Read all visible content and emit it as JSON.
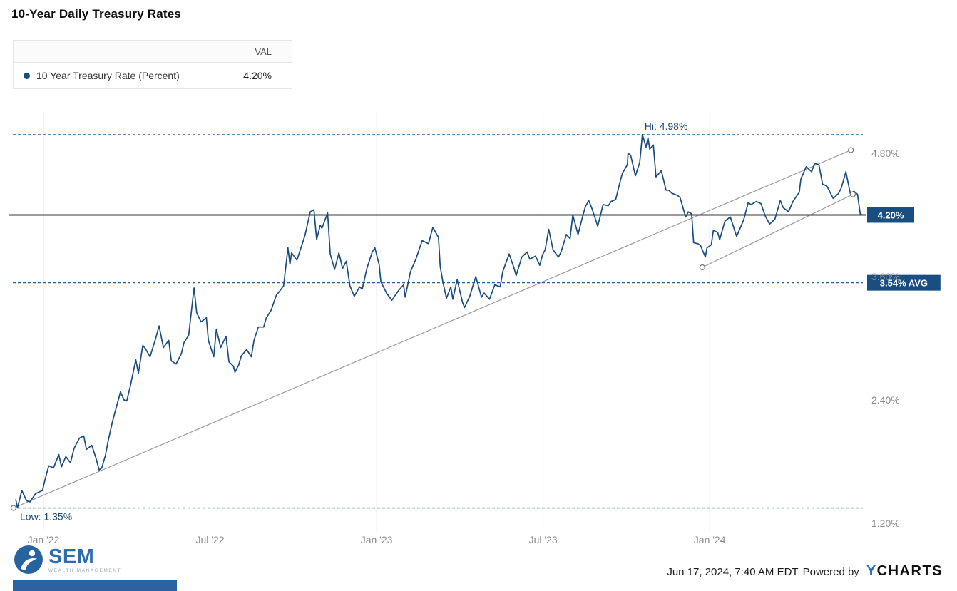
{
  "page": {
    "title": "10-Year Daily Treasury Rates"
  },
  "legend": {
    "col_header": "VAL",
    "series_label": "10 Year Treasury Rate (Percent)",
    "series_value": "4.20%"
  },
  "colors": {
    "line": "#1a4c7e",
    "dashed": "#27619c",
    "annotation_text": "#17497b",
    "badge_bg": "#1b4e80",
    "badge_text": "#ffffff",
    "grid": "#eaeaea",
    "axis_text": "#8c8c8c",
    "trend": "#9a9a9a",
    "last_line": "#3a3a3a"
  },
  "chart_data": {
    "type": "line",
    "title": "10-Year Daily Treasury Rates",
    "xlabel": "",
    "ylabel": "10 Year Treasury Rate (Percent)",
    "grid": "vertical-only",
    "legend_position": "top-left",
    "xlim": [
      2021.908,
      2024.46
    ],
    "ylim": [
      1.125,
      5.25
    ],
    "x_ticks": [
      {
        "t": 2022.0,
        "label": "Jan '22"
      },
      {
        "t": 2022.5,
        "label": "Jul '22"
      },
      {
        "t": 2023.0,
        "label": "Jan '23"
      },
      {
        "t": 2023.5,
        "label": "Jul '23"
      },
      {
        "t": 2024.0,
        "label": "Jan '24"
      }
    ],
    "y_ticks": [
      {
        "v": 4.8,
        "label": "4.80%"
      },
      {
        "v": 3.6,
        "label": "3.60%"
      },
      {
        "v": 2.4,
        "label": "2.40%"
      },
      {
        "v": 1.2,
        "label": "1.20%"
      }
    ],
    "annotations": {
      "high": {
        "value": 4.98,
        "label": "Hi: 4.98%",
        "label_t": 2023.8
      },
      "low": {
        "value": 1.35,
        "label": "Low: 1.35%"
      },
      "avg": {
        "value": 3.54,
        "label": "3.54% AVG"
      },
      "last": {
        "value": 4.2,
        "label": "4.20%"
      },
      "trendlines": [
        {
          "from": [
            2021.91,
            1.35
          ],
          "to": [
            2024.424,
            4.83
          ]
        },
        {
          "from": [
            2023.978,
            3.69
          ],
          "to": [
            2024.43,
            4.4
          ]
        }
      ]
    },
    "series": [
      {
        "name": "10 Year Treasury Rate (Percent)",
        "last_value": 4.2,
        "points": [
          [
            2021.917,
            1.43
          ],
          [
            2021.922,
            1.35
          ],
          [
            2021.935,
            1.52
          ],
          [
            2021.949,
            1.42
          ],
          [
            2021.96,
            1.41
          ],
          [
            2021.976,
            1.49
          ],
          [
            2021.997,
            1.52
          ],
          [
            2022.005,
            1.63
          ],
          [
            2022.016,
            1.76
          ],
          [
            2022.03,
            1.74
          ],
          [
            2022.046,
            1.87
          ],
          [
            2022.054,
            1.75
          ],
          [
            2022.067,
            1.85
          ],
          [
            2022.081,
            1.79
          ],
          [
            2022.092,
            1.93
          ],
          [
            2022.108,
            2.03
          ],
          [
            2022.121,
            2.05
          ],
          [
            2022.129,
            1.92
          ],
          [
            2022.145,
            1.96
          ],
          [
            2022.158,
            1.83
          ],
          [
            2022.167,
            1.72
          ],
          [
            2022.175,
            1.74
          ],
          [
            2022.186,
            1.86
          ],
          [
            2022.194,
            2.0
          ],
          [
            2022.207,
            2.19
          ],
          [
            2022.223,
            2.38
          ],
          [
            2022.231,
            2.48
          ],
          [
            2022.242,
            2.4
          ],
          [
            2022.25,
            2.39
          ],
          [
            2022.261,
            2.54
          ],
          [
            2022.277,
            2.79
          ],
          [
            2022.285,
            2.66
          ],
          [
            2022.298,
            2.93
          ],
          [
            2022.306,
            2.9
          ],
          [
            2022.32,
            2.82
          ],
          [
            2022.336,
            2.99
          ],
          [
            2022.347,
            3.12
          ],
          [
            2022.36,
            2.91
          ],
          [
            2022.376,
            2.98
          ],
          [
            2022.384,
            2.78
          ],
          [
            2022.398,
            2.75
          ],
          [
            2022.414,
            2.85
          ],
          [
            2022.422,
            2.96
          ],
          [
            2022.436,
            3.03
          ],
          [
            2022.452,
            3.49
          ],
          [
            2022.46,
            3.25
          ],
          [
            2022.473,
            3.16
          ],
          [
            2022.489,
            3.2
          ],
          [
            2022.495,
            2.98
          ],
          [
            2022.511,
            2.82
          ],
          [
            2022.519,
            3.09
          ],
          [
            2022.532,
            2.91
          ],
          [
            2022.548,
            3.02
          ],
          [
            2022.557,
            2.77
          ],
          [
            2022.57,
            2.73
          ],
          [
            2022.575,
            2.67
          ],
          [
            2022.586,
            2.74
          ],
          [
            2022.594,
            2.83
          ],
          [
            2022.61,
            2.89
          ],
          [
            2022.624,
            2.82
          ],
          [
            2022.632,
            2.98
          ],
          [
            2022.645,
            3.11
          ],
          [
            2022.661,
            3.11
          ],
          [
            2022.669,
            3.2
          ],
          [
            2022.683,
            3.27
          ],
          [
            2022.699,
            3.42
          ],
          [
            2022.707,
            3.45
          ],
          [
            2022.721,
            3.51
          ],
          [
            2022.734,
            3.88
          ],
          [
            2022.74,
            3.72
          ],
          [
            2022.745,
            3.83
          ],
          [
            2022.761,
            3.76
          ],
          [
            2022.774,
            3.89
          ],
          [
            2022.785,
            4.0
          ],
          [
            2022.801,
            4.23
          ],
          [
            2022.812,
            4.25
          ],
          [
            2022.82,
            3.96
          ],
          [
            2022.831,
            4.1
          ],
          [
            2022.836,
            4.07
          ],
          [
            2022.853,
            4.22
          ],
          [
            2022.861,
            3.82
          ],
          [
            2022.874,
            3.67
          ],
          [
            2022.887,
            3.83
          ],
          [
            2022.898,
            3.68
          ],
          [
            2022.909,
            3.75
          ],
          [
            2022.92,
            3.51
          ],
          [
            2022.933,
            3.41
          ],
          [
            2022.949,
            3.5
          ],
          [
            2022.957,
            3.48
          ],
          [
            2022.971,
            3.68
          ],
          [
            2022.987,
            3.84
          ],
          [
            2022.995,
            3.88
          ],
          [
            2023.008,
            3.71
          ],
          [
            2023.013,
            3.55
          ],
          [
            2023.03,
            3.44
          ],
          [
            2023.046,
            3.37
          ],
          [
            2023.065,
            3.46
          ],
          [
            2023.081,
            3.52
          ],
          [
            2023.086,
            3.4
          ],
          [
            2023.102,
            3.65
          ],
          [
            2023.118,
            3.77
          ],
          [
            2023.137,
            3.95
          ],
          [
            2023.156,
            3.92
          ],
          [
            2023.169,
            4.08
          ],
          [
            2023.186,
            3.98
          ],
          [
            2023.191,
            3.7
          ],
          [
            2023.199,
            3.55
          ],
          [
            2023.21,
            3.39
          ],
          [
            2023.223,
            3.5
          ],
          [
            2023.229,
            3.38
          ],
          [
            2023.242,
            3.57
          ],
          [
            2023.258,
            3.35
          ],
          [
            2023.264,
            3.3
          ],
          [
            2023.28,
            3.41
          ],
          [
            2023.298,
            3.6
          ],
          [
            2023.315,
            3.4
          ],
          [
            2023.323,
            3.44
          ],
          [
            2023.339,
            3.38
          ],
          [
            2023.355,
            3.52
          ],
          [
            2023.371,
            3.5
          ],
          [
            2023.379,
            3.65
          ],
          [
            2023.398,
            3.82
          ],
          [
            2023.412,
            3.69
          ],
          [
            2023.419,
            3.61
          ],
          [
            2023.436,
            3.79
          ],
          [
            2023.452,
            3.84
          ],
          [
            2023.46,
            3.77
          ],
          [
            2023.477,
            3.8
          ],
          [
            2023.49,
            3.71
          ],
          [
            2023.498,
            3.81
          ],
          [
            2023.506,
            3.86
          ],
          [
            2023.517,
            4.06
          ],
          [
            2023.53,
            3.86
          ],
          [
            2023.546,
            3.79
          ],
          [
            2023.554,
            3.84
          ],
          [
            2023.57,
            4.01
          ],
          [
            2023.581,
            3.97
          ],
          [
            2023.589,
            4.2
          ],
          [
            2023.605,
            4.01
          ],
          [
            2023.619,
            4.19
          ],
          [
            2023.627,
            4.28
          ],
          [
            2023.637,
            4.34
          ],
          [
            2023.648,
            4.25
          ],
          [
            2023.664,
            4.09
          ],
          [
            2023.68,
            4.3
          ],
          [
            2023.696,
            4.29
          ],
          [
            2023.704,
            4.33
          ],
          [
            2023.718,
            4.35
          ],
          [
            2023.734,
            4.56
          ],
          [
            2023.739,
            4.61
          ],
          [
            2023.753,
            4.69
          ],
          [
            2023.755,
            4.8
          ],
          [
            2023.763,
            4.78
          ],
          [
            2023.777,
            4.58
          ],
          [
            2023.79,
            4.71
          ],
          [
            2023.798,
            4.98
          ],
          [
            2023.809,
            4.86
          ],
          [
            2023.815,
            4.95
          ],
          [
            2023.82,
            4.84
          ],
          [
            2023.831,
            4.88
          ],
          [
            2023.839,
            4.57
          ],
          [
            2023.855,
            4.63
          ],
          [
            2023.869,
            4.44
          ],
          [
            2023.877,
            4.44
          ],
          [
            2023.887,
            4.41
          ],
          [
            2023.903,
            4.39
          ],
          [
            2023.911,
            4.37
          ],
          [
            2023.928,
            4.18
          ],
          [
            2023.936,
            4.23
          ],
          [
            2023.946,
            4.21
          ],
          [
            2023.952,
            3.93
          ],
          [
            2023.965,
            3.92
          ],
          [
            2023.973,
            3.9
          ],
          [
            2023.987,
            3.79
          ],
          [
            2023.992,
            3.88
          ],
          [
            2024.005,
            3.91
          ],
          [
            2024.011,
            4.05
          ],
          [
            2024.024,
            4.03
          ],
          [
            2024.03,
            3.96
          ],
          [
            2024.046,
            4.14
          ],
          [
            2024.062,
            4.18
          ],
          [
            2024.081,
            3.99
          ],
          [
            2024.086,
            4.03
          ],
          [
            2024.102,
            4.15
          ],
          [
            2024.116,
            4.32
          ],
          [
            2024.124,
            4.3
          ],
          [
            2024.14,
            4.33
          ],
          [
            2024.154,
            4.31
          ],
          [
            2024.167,
            4.19
          ],
          [
            2024.18,
            4.11
          ],
          [
            2024.196,
            4.16
          ],
          [
            2024.212,
            4.34
          ],
          [
            2024.221,
            4.27
          ],
          [
            2024.237,
            4.23
          ],
          [
            2024.25,
            4.33
          ],
          [
            2024.269,
            4.42
          ],
          [
            2024.274,
            4.55
          ],
          [
            2024.29,
            4.67
          ],
          [
            2024.306,
            4.62
          ],
          [
            2024.315,
            4.7
          ],
          [
            2024.328,
            4.69
          ],
          [
            2024.339,
            4.5
          ],
          [
            2024.352,
            4.48
          ],
          [
            2024.371,
            4.36
          ],
          [
            2024.387,
            4.41
          ],
          [
            2024.395,
            4.46
          ],
          [
            2024.409,
            4.62
          ],
          [
            2024.422,
            4.41
          ],
          [
            2024.433,
            4.43
          ],
          [
            2024.444,
            4.4
          ],
          [
            2024.452,
            4.21
          ],
          [
            2024.46,
            4.2
          ]
        ]
      }
    ]
  },
  "footer": {
    "brand_name": "SEM",
    "brand_subtitle": "WEALTH MANAGEMENT",
    "timestamp": "Jun 17, 2024, 7:40 AM EDT",
    "powered_by": "Powered by",
    "ycharts_y": "Y",
    "ycharts_rest": "CHARTS"
  }
}
